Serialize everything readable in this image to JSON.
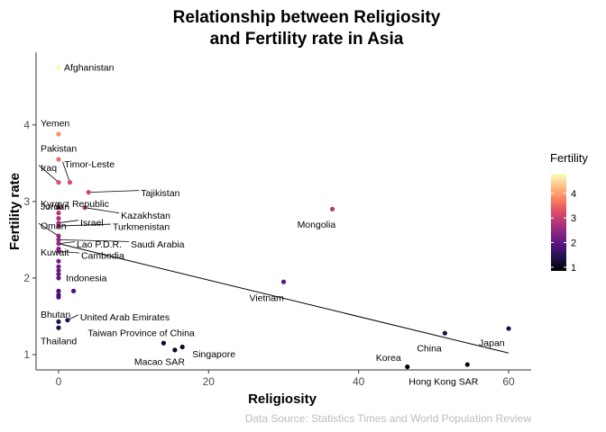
{
  "chart_data": {
    "type": "scatter",
    "title_line1": "Relationship between Religiosity",
    "title_line2": "and Fertility rate in Asia",
    "xlabel": "Religiosity",
    "ylabel": "Fertility rate",
    "caption": "Data Source: Statistics Times and World Population Review",
    "xlim": [
      -3,
      63
    ],
    "ylim": [
      0.8,
      4.95
    ],
    "xticks": [
      0,
      20,
      40,
      60
    ],
    "yticks": [
      1,
      2,
      3,
      4
    ],
    "grid": false,
    "color_scale": {
      "name": "Fertility",
      "palette": "magma",
      "min": 0.85,
      "max": 4.8,
      "ticks": [
        1,
        2,
        3,
        4
      ],
      "stops": [
        "#000004",
        "#1c1044",
        "#4f127b",
        "#812581",
        "#b5367a",
        "#e55064",
        "#fb8761",
        "#fec287",
        "#fcfdbf"
      ]
    },
    "trend_line": {
      "x": [
        0,
        60
      ],
      "y": [
        2.45,
        1.02
      ]
    },
    "points": [
      {
        "label": "Afghanistan",
        "x": 0,
        "y": 4.75
      },
      {
        "label": "Yemen",
        "x": 0,
        "y": 3.88
      },
      {
        "label": "Pakistan",
        "x": 0,
        "y": 3.55
      },
      {
        "label": "Iraq",
        "x": 0,
        "y": 3.25
      },
      {
        "label": "Timor-Leste",
        "x": 1.5,
        "y": 3.25
      },
      {
        "label": "Tajikistan",
        "x": 4,
        "y": 3.12
      },
      {
        "label": "Kazakhstan",
        "x": 3.5,
        "y": 2.92
      },
      {
        "label": "Kyrgyz Republic",
        "x": 0,
        "y": 2.92
      },
      {
        "label": "Jordan",
        "x": 0,
        "y": 2.85
      },
      {
        "label": "",
        "x": 0,
        "y": 2.78
      },
      {
        "label": "Israel",
        "x": 0,
        "y": 2.72
      },
      {
        "label": "Turkmenistan",
        "x": 0,
        "y": 2.68
      },
      {
        "label": "Oman",
        "x": 0,
        "y": 2.55
      },
      {
        "label": "Saudi Arabia",
        "x": 0,
        "y": 2.5
      },
      {
        "label": "Lao P.D.R.",
        "x": 0,
        "y": 2.45
      },
      {
        "label": "Kuwait",
        "x": 0,
        "y": 2.38
      },
      {
        "label": "Cambodia",
        "x": 0,
        "y": 2.35
      },
      {
        "label": "",
        "x": 0,
        "y": 2.22
      },
      {
        "label": "",
        "x": 0,
        "y": 2.15
      },
      {
        "label": "",
        "x": 0,
        "y": 2.1
      },
      {
        "label": "",
        "x": 0,
        "y": 2.05
      },
      {
        "label": "Indonesia",
        "x": 0,
        "y": 2.0
      },
      {
        "label": "",
        "x": 0,
        "y": 1.83
      },
      {
        "label": "",
        "x": 0,
        "y": 1.78
      },
      {
        "label": "",
        "x": 0,
        "y": 1.75
      },
      {
        "label": "",
        "x": 2,
        "y": 1.83
      },
      {
        "label": "Bhutan",
        "x": 0,
        "y": 1.43
      },
      {
        "label": "United Arab Emirates",
        "x": 1.2,
        "y": 1.45
      },
      {
        "label": "Thailand",
        "x": 0,
        "y": 1.35
      },
      {
        "label": "Taiwan Province of China",
        "x": 14,
        "y": 1.15
      },
      {
        "label": "Singapore",
        "x": 16.5,
        "y": 1.1
      },
      {
        "label": "Macao SAR",
        "x": 15.5,
        "y": 1.06
      },
      {
        "label": "Mongolia",
        "x": 36.5,
        "y": 2.9
      },
      {
        "label": "Vietnam",
        "x": 30,
        "y": 1.95
      },
      {
        "label": "China",
        "x": 51.5,
        "y": 1.28
      },
      {
        "label": "Japan",
        "x": 60,
        "y": 1.34
      },
      {
        "label": "Korea",
        "x": 46.5,
        "y": 0.84
      },
      {
        "label": "Hong Kong SAR",
        "x": 54.5,
        "y": 0.87
      }
    ]
  }
}
